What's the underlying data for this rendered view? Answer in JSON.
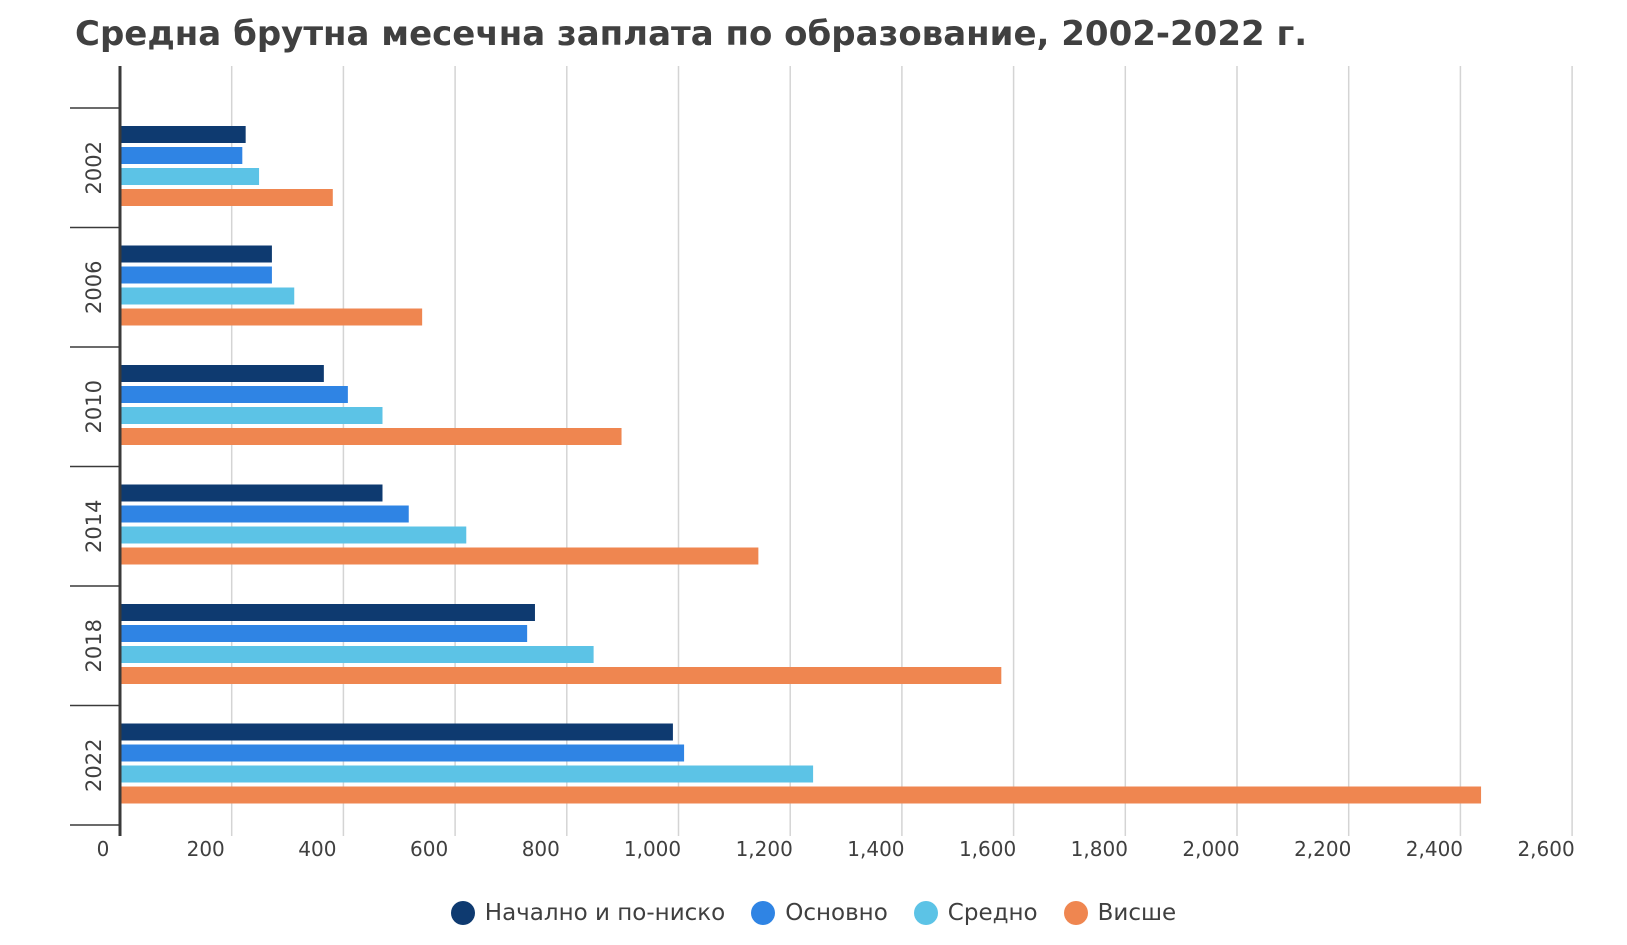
{
  "chart_data": {
    "type": "bar",
    "orientation": "horizontal",
    "title": "Средна брутна месечна заплата по образование, 2002-2022 г.",
    "categories": [
      "2002",
      "2006",
      "2010",
      "2014",
      "2018",
      "2022"
    ],
    "series": [
      {
        "name": "Начално и по-ниско",
        "color": "#0e3a70",
        "values": [
          225,
          272,
          365,
          470,
          743,
          990
        ]
      },
      {
        "name": "Основно",
        "color": "#2f84e4",
        "values": [
          219,
          272,
          408,
          517,
          729,
          1010
        ]
      },
      {
        "name": "Средно",
        "color": "#5cc3e6",
        "values": [
          249,
          312,
          470,
          620,
          848,
          1241
        ]
      },
      {
        "name": "Висше",
        "color": "#ef8650",
        "values": [
          381,
          541,
          898,
          1143,
          1578,
          2437
        ]
      }
    ],
    "xlim": [
      0,
      2600
    ],
    "x_ticks": [
      0,
      200,
      400,
      600,
      800,
      1000,
      1200,
      1400,
      1600,
      1800,
      2000,
      2200,
      2400,
      2600
    ],
    "x_tick_labels": [
      "0",
      "200",
      "400",
      "600",
      "800",
      "1,000",
      "1,200",
      "1,400",
      "1,600",
      "1,800",
      "2,000",
      "2,200",
      "2,400",
      "2,600"
    ],
    "grid": true,
    "legend_position": "bottom-center",
    "xlabel": "",
    "ylabel": ""
  }
}
